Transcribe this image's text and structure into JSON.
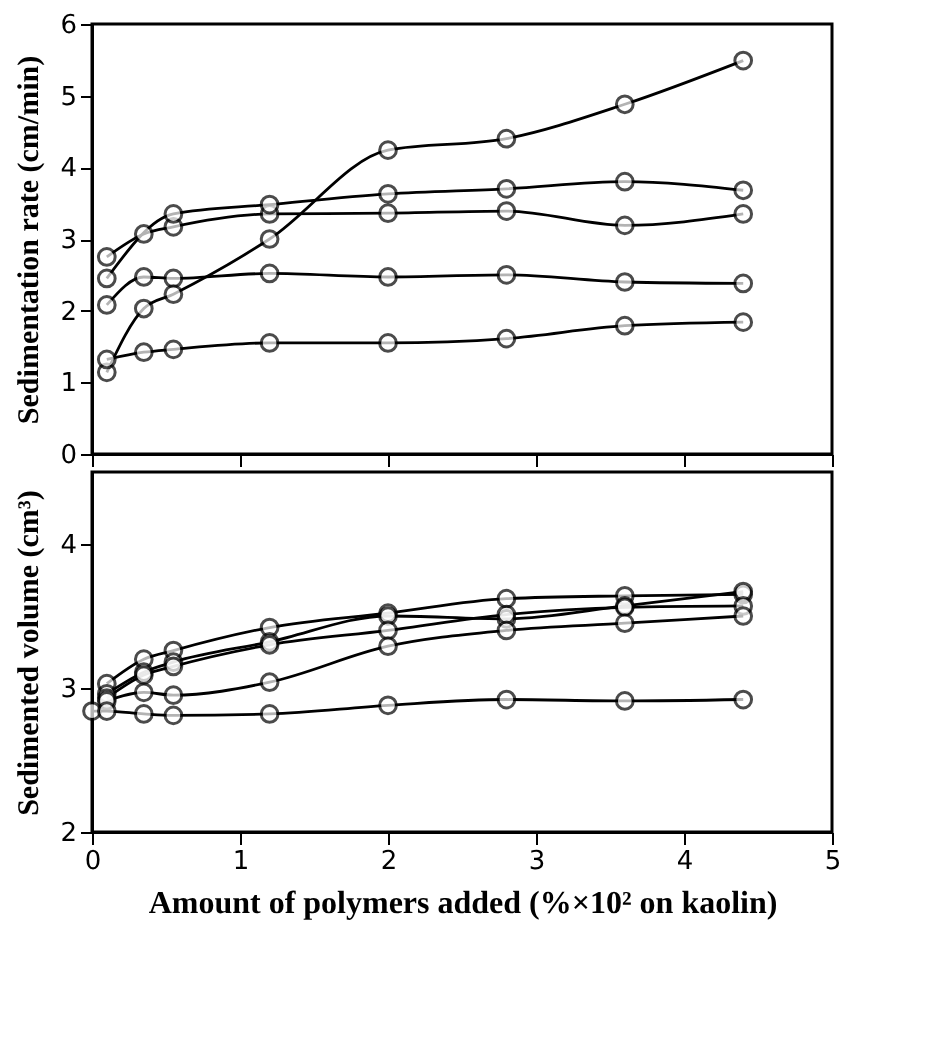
{
  "chart_data": [
    {
      "type": "line",
      "ylabel": "Sedimentation rate (cm/min)",
      "x": [
        0.1,
        0.35,
        0.55,
        1.2,
        2.0,
        2.8,
        3.6,
        4.4
      ],
      "series": [
        {
          "color": "#000000",
          "values": [
            2.75,
            3.07,
            3.17,
            3.35,
            3.36,
            3.39,
            3.19,
            3.35
          ]
        },
        {
          "color": "#000000",
          "values": [
            2.45,
            null,
            3.35,
            3.48,
            3.63,
            3.7,
            3.8,
            3.68
          ]
        },
        {
          "color": "#000000",
          "values": [
            2.08,
            2.47,
            2.45,
            2.52,
            2.47,
            2.5,
            2.4,
            2.38
          ]
        },
        {
          "color": "#000000",
          "values": [
            1.14,
            2.03,
            2.23,
            3.0,
            4.24,
            4.4,
            4.88,
            5.49
          ]
        },
        {
          "color": "#000000",
          "values": [
            1.32,
            1.42,
            1.46,
            1.55,
            1.55,
            1.61,
            1.79,
            1.84
          ]
        }
      ],
      "xlim": [
        0,
        5
      ],
      "xticks": [
        0,
        1,
        2,
        3,
        4,
        5
      ],
      "ylim": [
        0,
        6
      ],
      "yticks": [
        0,
        1,
        2,
        3,
        4,
        5,
        6
      ],
      "tick_labels": "y",
      "grid": false,
      "legend": false,
      "marker": "circle"
    },
    {
      "type": "line",
      "xlabel": "Amount of polymers added (%×10² on kaolin)",
      "ylabel": "Sedimented volume (cm³)",
      "x": [
        0,
        0.1,
        0.35,
        0.55,
        1.2,
        2.0,
        2.8,
        3.6,
        4.4
      ],
      "series": [
        {
          "color": "#000000",
          "values": [
            null,
            3.03,
            3.2,
            3.26,
            3.42,
            3.52,
            3.62,
            3.64,
            3.65
          ]
        },
        {
          "color": "#000000",
          "values": [
            null,
            2.96,
            3.11,
            3.18,
            3.32,
            3.5,
            3.48,
            3.57,
            3.67
          ]
        },
        {
          "color": "#000000",
          "values": [
            null,
            2.93,
            3.09,
            3.15,
            3.3,
            3.4,
            3.51,
            3.56,
            3.57
          ]
        },
        {
          "color": "#000000",
          "values": [
            null,
            2.91,
            2.97,
            2.95,
            3.04,
            3.29,
            3.4,
            3.45,
            3.5
          ]
        },
        {
          "color": "#000000",
          "values": [
            2.84,
            2.84,
            2.82,
            2.81,
            2.82,
            2.88,
            2.92,
            2.91,
            2.92
          ]
        }
      ],
      "xlim": [
        0,
        5
      ],
      "xticks": [
        0,
        1,
        2,
        3,
        4,
        5
      ],
      "ylim": [
        2,
        4.5
      ],
      "yticks": [
        2,
        3,
        4
      ],
      "grid": false,
      "legend": false,
      "marker": "circle"
    }
  ]
}
